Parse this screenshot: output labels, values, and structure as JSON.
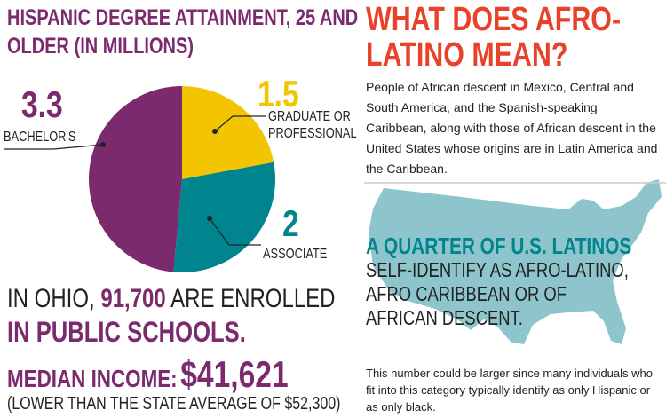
{
  "chart_data": {
    "type": "pie",
    "title": "HISPANIC DEGREE ATTAINMENT, 25 AND OLDER (IN MILLIONS)",
    "categories": [
      "GRADUATE OR PROFESSIONAL",
      "ASSOCIATE",
      "BACHELOR'S"
    ],
    "values": [
      1.5,
      2,
      3.3
    ],
    "colors": [
      "#f2c500",
      "#00848e",
      "#7b2a6e"
    ]
  },
  "ohio": {
    "prefix": "IN OHIO,",
    "number": "91,700",
    "suffix": "ARE ENROLLED",
    "line2": "IN PUBLIC SCHOOLS."
  },
  "income": {
    "label": "MEDIAN INCOME:",
    "value": "$41,621",
    "note": "(LOWER THAN THE STATE AVERAGE OF $52,300)"
  },
  "afro": {
    "heading": "WHAT DOES AFRO-LATINO MEAN?",
    "definition": "People of African descent in Mexico, Central and South America, and the Spanish-speaking Caribbean, along with those of African descent in the United States whose origins are in Latin America and the Caribbean.",
    "highlight": "A QUARTER OF U.S. LATINOS",
    "statement": "SELF-IDENTIFY AS AFRO-LATINO, AFRO CARIBBEAN OR OF AFRICAN DESCENT.",
    "footnote": "This number could be larger since many individuals who fit into this category typically identify as only Hispanic or as only black."
  }
}
